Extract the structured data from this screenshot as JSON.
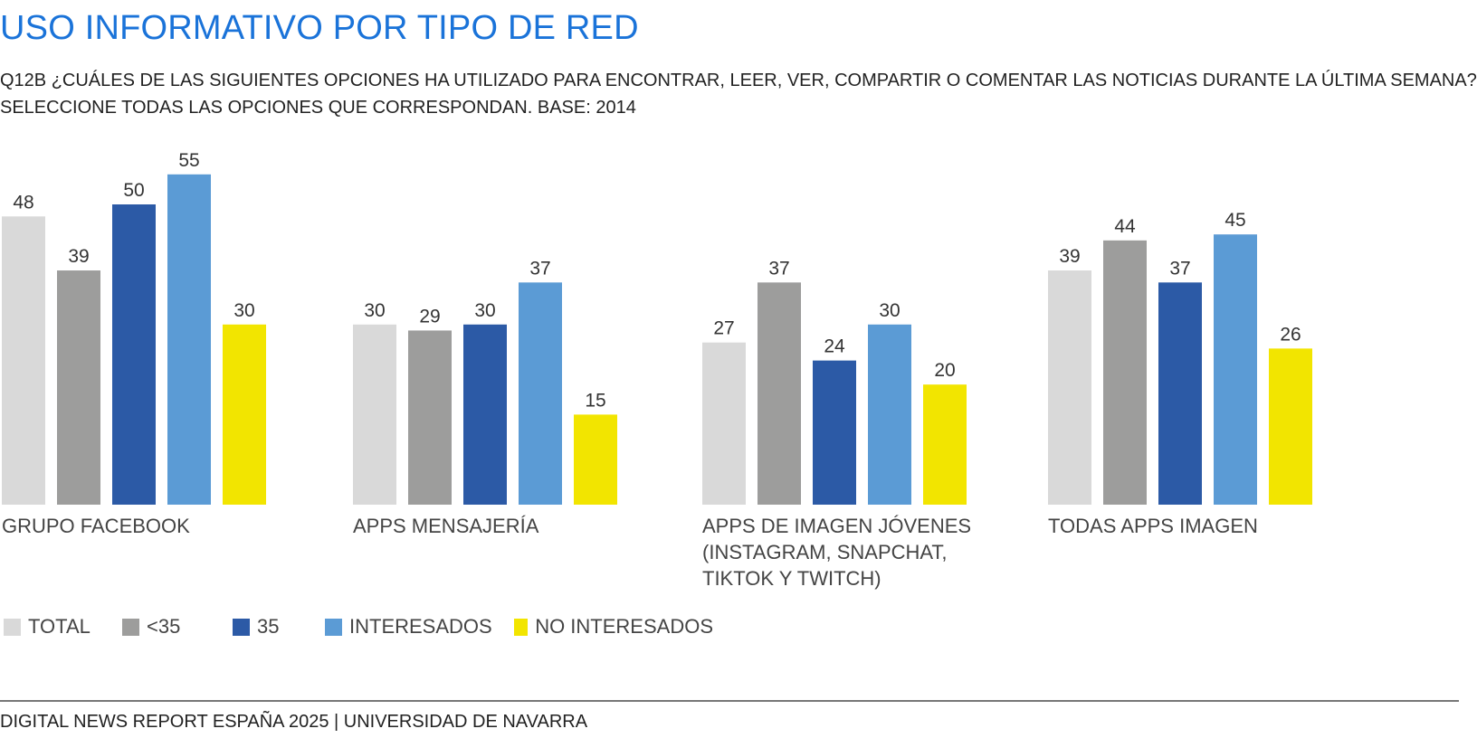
{
  "header": {
    "title": "USO INFORMATIVO POR TIPO DE RED",
    "subtitle_lines": [
      "Q12B ¿CUÁLES DE LAS SIGUIENTES OPCIONES HA UTILIZADO PARA ENCONTRAR, LEER, VER, COMPARTIR O COMENTAR LAS NOTICIAS DURANTE LA ÚLTIMA SEMANA?",
      "SELECCIONE TODAS LAS OPCIONES QUE CORRESPONDAN. BASE: 2014"
    ]
  },
  "chart_data": {
    "type": "bar",
    "categories": [
      [
        "GRUPO FACEBOOK"
      ],
      [
        "APPS MENSAJERÍA"
      ],
      [
        "APPS DE IMAGEN JÓVENES",
        "(INSTAGRAM, SNAPCHAT,",
        "TIKTOK Y TWITCH)"
      ],
      [
        "TODAS APPS IMAGEN"
      ]
    ],
    "series": [
      {
        "name": "TOTAL",
        "color": "#d9d9d9",
        "values": [
          48,
          30,
          27,
          39
        ]
      },
      {
        "name": "<35",
        "color": "#9d9d9c",
        "values": [
          39,
          29,
          37,
          44
        ]
      },
      {
        "name": "35",
        "color": "#2c5aa6",
        "values": [
          50,
          30,
          24,
          37
        ]
      },
      {
        "name": "INTERESADOS",
        "color": "#5b9bd5",
        "values": [
          55,
          37,
          30,
          45
        ]
      },
      {
        "name": "NO INTERESADOS",
        "color": "#f2e500",
        "values": [
          30,
          15,
          20,
          26
        ]
      }
    ],
    "ylim": [
      0,
      60
    ],
    "grid": false,
    "legend_position": "bottom-left"
  },
  "footer": {
    "text": "DIGITAL NEWS REPORT ESPAÑA 2025 | UNIVERSIDAD DE NAVARRA"
  }
}
